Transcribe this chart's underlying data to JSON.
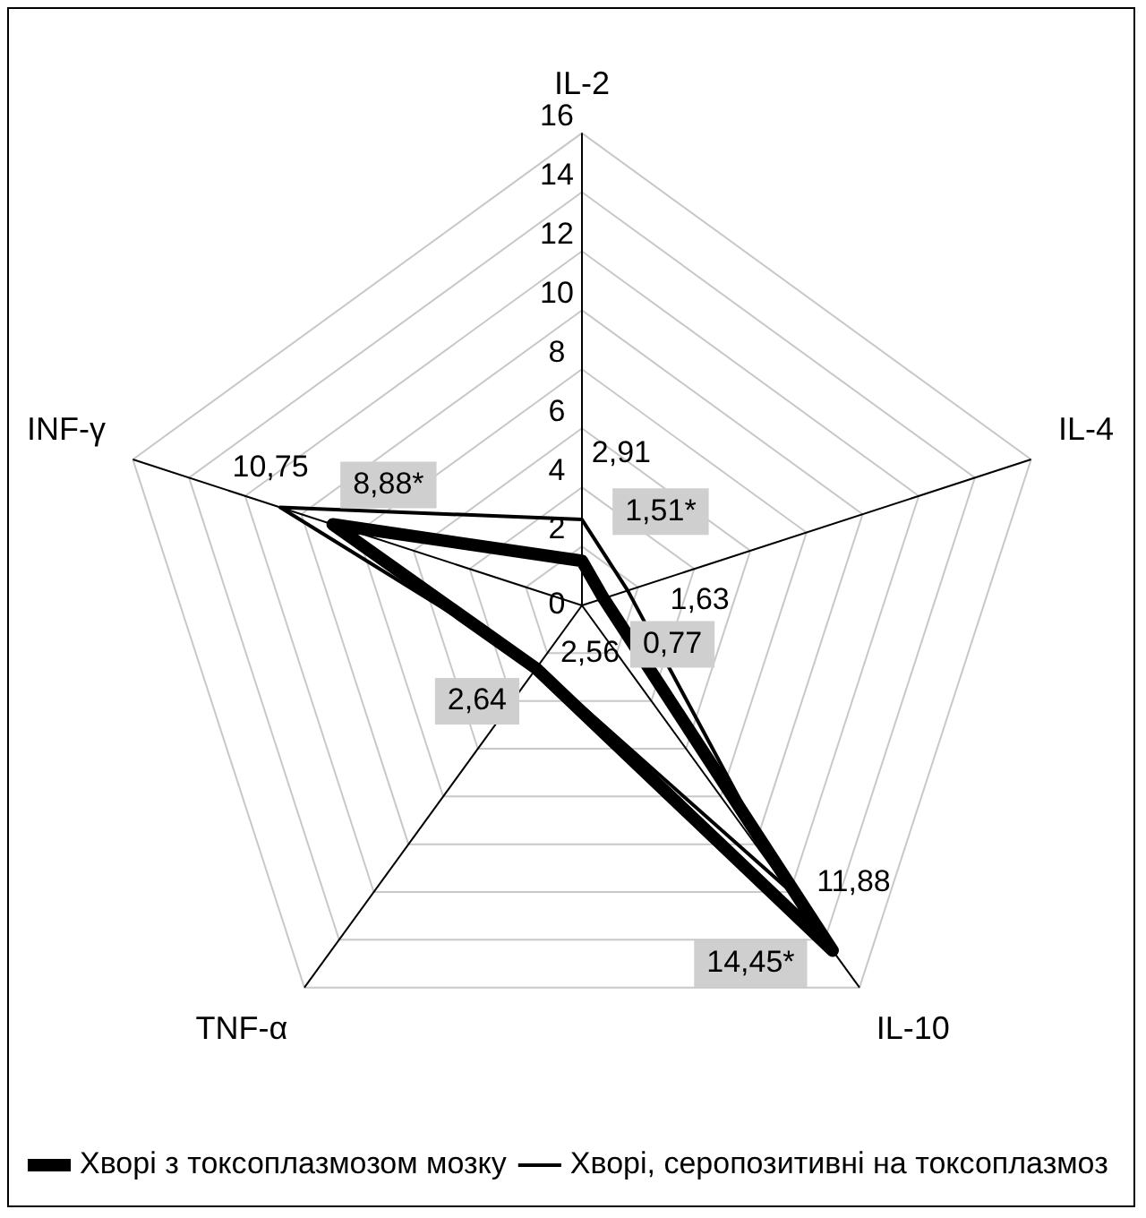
{
  "chart_data": {
    "type": "radar",
    "categories": [
      "IL-2",
      "IL-4",
      "IL-10",
      "TNF-α",
      "INF-γ"
    ],
    "series": [
      {
        "name": "Хворі з токсоплазмозом мозку",
        "color": "#000000",
        "values": [
          1.51,
          0.77,
          14.45,
          2.64,
          8.88
        ],
        "value_labels": [
          "1,51*",
          "0,77",
          "14,45*",
          "2,64",
          "8,88*"
        ]
      },
      {
        "name": "Хворі, серопозитивні на токсоплазмоз",
        "color": "#000000",
        "values": [
          2.91,
          1.63,
          11.88,
          2.56,
          10.75
        ],
        "value_labels": [
          "2,91",
          "1,63",
          "11,88",
          "2,56",
          "10,75"
        ]
      }
    ],
    "ylim": [
      0,
      16
    ],
    "yticks": [
      0,
      2,
      4,
      6,
      8,
      10,
      12,
      14,
      16
    ],
    "grid": true,
    "legend": "bottom",
    "marker": "none",
    "line_style": "solid"
  }
}
